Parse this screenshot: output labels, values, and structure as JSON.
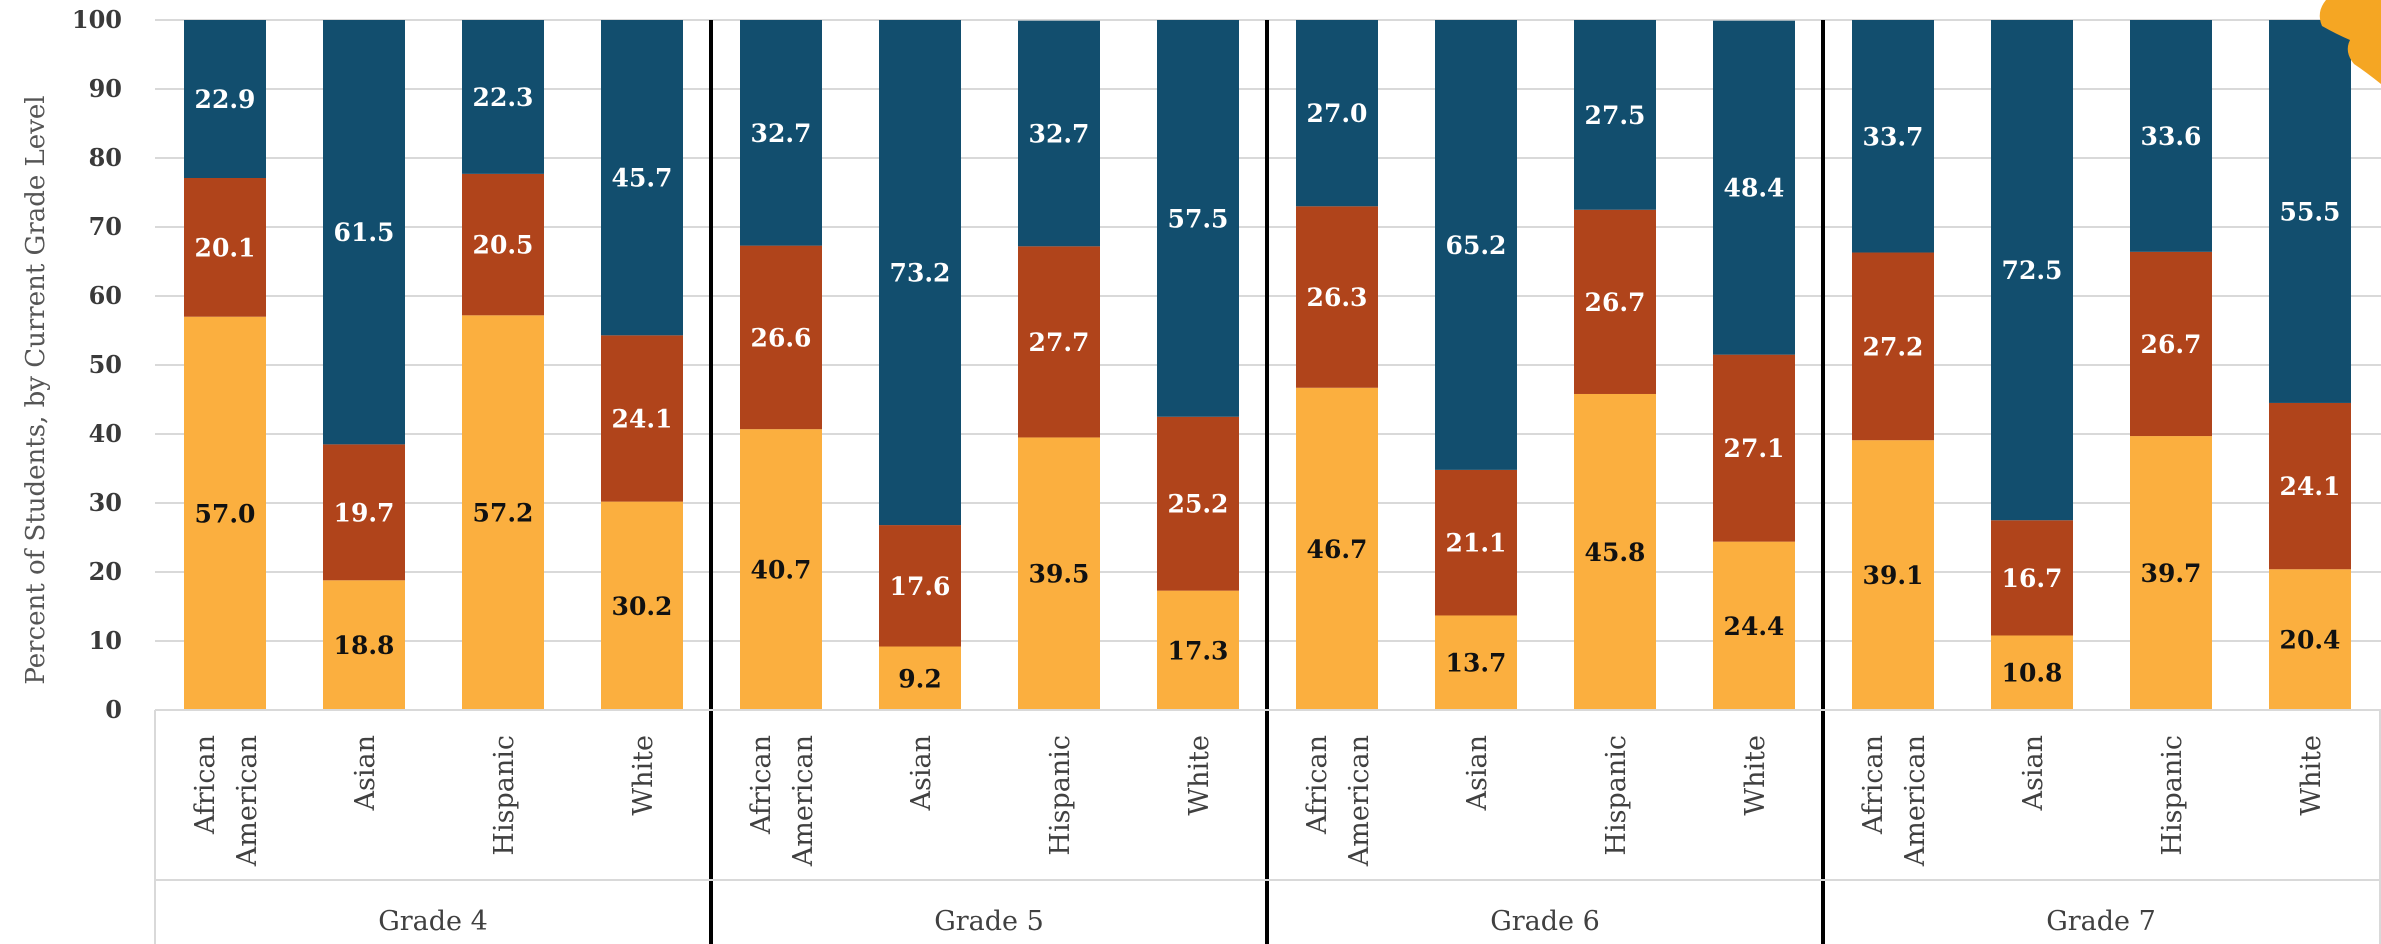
{
  "chart_data": {
    "type": "bar",
    "stacked": true,
    "ylabel": "Percent of Students, by Current Grade Level",
    "ylim": [
      0,
      100
    ],
    "yticks": [
      0,
      10,
      20,
      30,
      40,
      50,
      60,
      70,
      80,
      90,
      100
    ],
    "grid": true,
    "groups": [
      {
        "name": "Grade 4",
        "categories": [
          {
            "label": [
              "African",
              "American"
            ],
            "values": [
              57.0,
              20.1,
              22.9
            ]
          },
          {
            "label": [
              "Asian"
            ],
            "values": [
              18.8,
              19.7,
              61.5
            ]
          },
          {
            "label": [
              "Hispanic"
            ],
            "values": [
              57.2,
              20.5,
              22.3
            ]
          },
          {
            "label": [
              "White"
            ],
            "values": [
              30.2,
              24.1,
              45.7
            ]
          }
        ]
      },
      {
        "name": "Grade 5",
        "categories": [
          {
            "label": [
              "African",
              "American"
            ],
            "values": [
              40.7,
              26.6,
              32.7
            ]
          },
          {
            "label": [
              "Asian"
            ],
            "values": [
              9.2,
              17.6,
              73.2
            ]
          },
          {
            "label": [
              "Hispanic"
            ],
            "values": [
              39.5,
              27.7,
              32.7
            ]
          },
          {
            "label": [
              "White"
            ],
            "values": [
              17.3,
              25.2,
              57.5
            ]
          }
        ]
      },
      {
        "name": "Grade 6",
        "categories": [
          {
            "label": [
              "African",
              "American"
            ],
            "values": [
              46.7,
              26.3,
              27.0
            ]
          },
          {
            "label": [
              "Asian"
            ],
            "values": [
              13.7,
              21.1,
              65.2
            ]
          },
          {
            "label": [
              "Hispanic"
            ],
            "values": [
              45.8,
              26.7,
              27.5
            ]
          },
          {
            "label": [
              "White"
            ],
            "values": [
              24.4,
              27.1,
              48.4
            ]
          }
        ]
      },
      {
        "name": "Grade 7",
        "categories": [
          {
            "label": [
              "African",
              "American"
            ],
            "values": [
              39.1,
              27.2,
              33.7
            ]
          },
          {
            "label": [
              "Asian"
            ],
            "values": [
              10.8,
              16.7,
              72.5
            ]
          },
          {
            "label": [
              "Hispanic"
            ],
            "values": [
              39.7,
              26.7,
              33.6
            ]
          },
          {
            "label": [
              "White"
            ],
            "values": [
              20.4,
              24.1,
              55.5
            ]
          }
        ]
      }
    ],
    "segment_colors": [
      "#fbaf3f",
      "#b0441b",
      "#124e6e"
    ],
    "segment_label_colors": [
      "#111111",
      "#ffffff",
      "#ffffff"
    ],
    "grid_color": "#d9d9d9",
    "separator_color": "#000000",
    "corner_mark_color": "#f5a623"
  }
}
